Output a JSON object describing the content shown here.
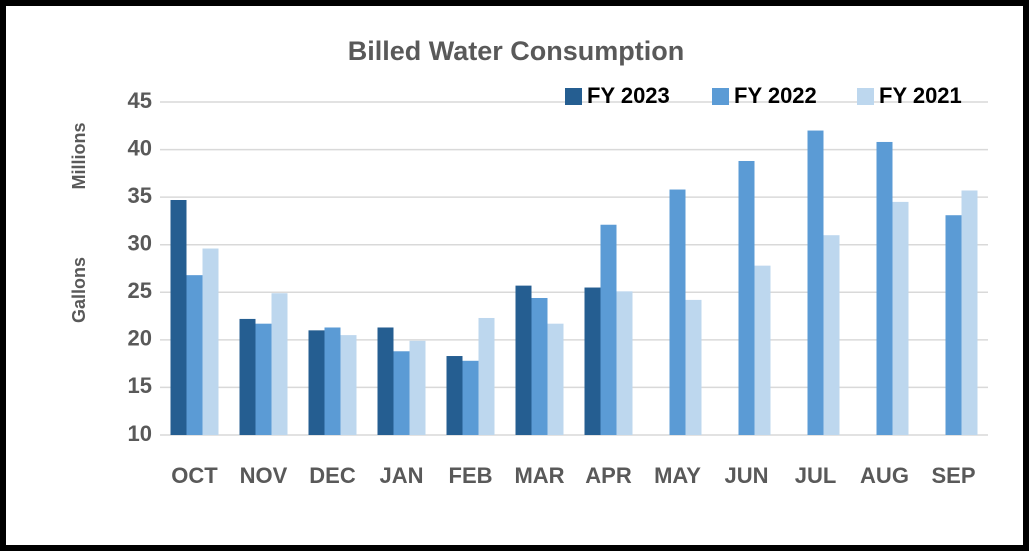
{
  "chart_data": {
    "type": "bar",
    "title": "Billed Water Consumption",
    "ylabel": "Gallons",
    "yunit": "Millions",
    "categories": [
      "OCT",
      "NOV",
      "DEC",
      "JAN",
      "FEB",
      "MAR",
      "APR",
      "MAY",
      "JUN",
      "JUL",
      "AUG",
      "SEP"
    ],
    "series": [
      {
        "name": "FY 2023",
        "color": "#255e91",
        "values": [
          34.7,
          22.2,
          21.0,
          21.3,
          18.3,
          25.7,
          25.5,
          null,
          null,
          null,
          null,
          null
        ]
      },
      {
        "name": "FY 2022",
        "color": "#5b9bd5",
        "values": [
          26.8,
          21.7,
          21.3,
          18.8,
          17.8,
          24.4,
          32.1,
          35.8,
          38.8,
          42.0,
          40.8,
          33.1
        ]
      },
      {
        "name": "FY 2021",
        "color": "#bdd7ee",
        "values": [
          29.6,
          24.9,
          20.5,
          19.9,
          22.3,
          21.7,
          25.1,
          24.2,
          27.8,
          31.0,
          34.5,
          35.7
        ]
      }
    ],
    "ylim": [
      10,
      45
    ],
    "yticks": [
      10,
      15,
      20,
      25,
      30,
      35,
      40,
      45
    ],
    "grid": true,
    "legend": "top-right"
  }
}
